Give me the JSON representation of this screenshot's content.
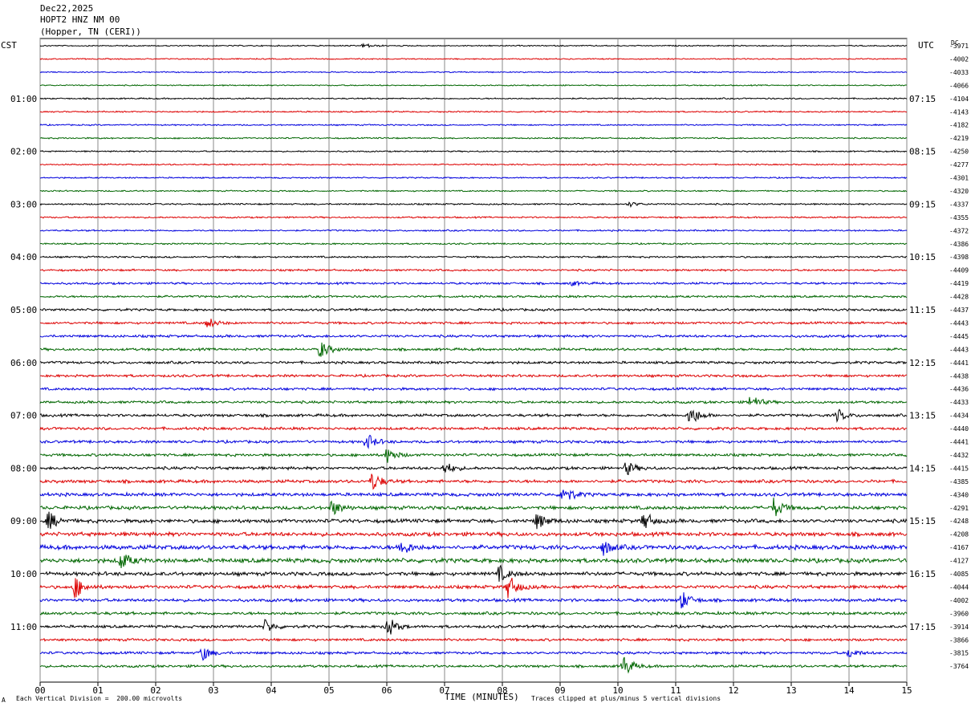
{
  "header": {
    "date": "Dec22,2025",
    "station": "HOPT2 HNZ NM 00",
    "location": "(Hopper, TN (CERI))"
  },
  "left_timezone": "CST",
  "right_timezone": "UTC",
  "dc_label": "DC",
  "footer": {
    "scale_note": "Each Vertical Division =  200.00 microvolts",
    "xlabel": "TIME (MINUTES)",
    "clip_note": "Traces clipped at plus/minus 5 vertical divisions",
    "corner_mark": "A"
  },
  "colors": {
    "cycle": [
      "#000000",
      "#dd0000",
      "#0000dd",
      "#006600"
    ],
    "grid": "#888888"
  },
  "chart_data": {
    "type": "line",
    "title": "HOPT2 HNZ NM 00",
    "xlabel": "TIME (MINUTES)",
    "xlim": [
      0,
      15
    ],
    "x_ticks": [
      "00",
      "01",
      "02",
      "03",
      "04",
      "05",
      "06",
      "07",
      "08",
      "09",
      "10",
      "11",
      "12",
      "13",
      "14",
      "15"
    ],
    "trace_count": 48,
    "left_hour_labels": [
      {
        "trace": 4,
        "label": "01:00"
      },
      {
        "trace": 8,
        "label": "02:00"
      },
      {
        "trace": 12,
        "label": "03:00"
      },
      {
        "trace": 16,
        "label": "04:00"
      },
      {
        "trace": 20,
        "label": "05:00"
      },
      {
        "trace": 24,
        "label": "06:00"
      },
      {
        "trace": 28,
        "label": "07:00"
      },
      {
        "trace": 32,
        "label": "08:00"
      },
      {
        "trace": 36,
        "label": "09:00"
      },
      {
        "trace": 40,
        "label": "10:00"
      },
      {
        "trace": 44,
        "label": "11:00"
      }
    ],
    "right_hour_labels": [
      {
        "trace": 4,
        "label": "07:15"
      },
      {
        "trace": 8,
        "label": "08:15"
      },
      {
        "trace": 12,
        "label": "09:15"
      },
      {
        "trace": 16,
        "label": "10:15"
      },
      {
        "trace": 20,
        "label": "11:15"
      },
      {
        "trace": 24,
        "label": "12:15"
      },
      {
        "trace": 28,
        "label": "13:15"
      },
      {
        "trace": 32,
        "label": "14:15"
      },
      {
        "trace": 36,
        "label": "15:15"
      },
      {
        "trace": 40,
        "label": "16:15"
      },
      {
        "trace": 44,
        "label": "17:15"
      }
    ],
    "dc_offsets": [
      "-3971",
      "-4002",
      "-4033",
      "-4066",
      "-4104",
      "-4143",
      "-4182",
      "-4219",
      "-4250",
      "-4277",
      "-4301",
      "-4320",
      "-4337",
      "-4355",
      "-4372",
      "-4386",
      "-4398",
      "-4409",
      "-4419",
      "-4428",
      "-4437",
      "-4443",
      "-4445",
      "-4443",
      "-4441",
      "-4438",
      "-4436",
      "-4433",
      "-4434",
      "-4440",
      "-4441",
      "-4432",
      "-4415",
      "-4385",
      "-4340",
      "-4291",
      "-4248",
      "-4208",
      "-4167",
      "-4127",
      "-4085",
      "-4044",
      "-4002",
      "-3960",
      "-3914",
      "-3866",
      "-3815",
      "-3764"
    ],
    "noise_level": [
      0.6,
      0.6,
      0.6,
      0.6,
      0.7,
      0.7,
      0.7,
      0.7,
      0.7,
      0.7,
      0.7,
      0.7,
      0.8,
      0.8,
      0.8,
      0.8,
      0.9,
      1.0,
      1.1,
      1.1,
      1.2,
      1.2,
      1.3,
      1.3,
      1.3,
      1.3,
      1.3,
      1.3,
      1.4,
      1.4,
      1.4,
      1.4,
      1.5,
      1.6,
      1.7,
      1.8,
      1.9,
      2.0,
      2.2,
      2.2,
      1.9,
      1.7,
      1.6,
      1.5,
      1.4,
      1.3,
      1.3,
      1.3
    ],
    "events": [
      {
        "trace": 0,
        "minute": 5.6,
        "amp": 3
      },
      {
        "trace": 12,
        "minute": 10.2,
        "amp": 3
      },
      {
        "trace": 18,
        "minute": 9.2,
        "amp": 3
      },
      {
        "trace": 21,
        "minute": 2.9,
        "amp": 7
      },
      {
        "trace": 23,
        "minute": 4.85,
        "amp": 12
      },
      {
        "trace": 27,
        "minute": 12.3,
        "amp": 10
      },
      {
        "trace": 28,
        "minute": 11.25,
        "amp": 14
      },
      {
        "trace": 28,
        "minute": 13.8,
        "amp": 8
      },
      {
        "trace": 30,
        "minute": 5.65,
        "amp": 11
      },
      {
        "trace": 31,
        "minute": 6.0,
        "amp": 10
      },
      {
        "trace": 32,
        "minute": 7.0,
        "amp": 8
      },
      {
        "trace": 32,
        "minute": 10.15,
        "amp": 9
      },
      {
        "trace": 33,
        "minute": 5.75,
        "amp": 12
      },
      {
        "trace": 34,
        "minute": 9.05,
        "amp": 14
      },
      {
        "trace": 35,
        "minute": 5.05,
        "amp": 10
      },
      {
        "trace": 35,
        "minute": 12.7,
        "amp": 13
      },
      {
        "trace": 36,
        "minute": 0.15,
        "amp": 12
      },
      {
        "trace": 36,
        "minute": 8.6,
        "amp": 11
      },
      {
        "trace": 36,
        "minute": 10.45,
        "amp": 12
      },
      {
        "trace": 38,
        "minute": 6.25,
        "amp": 11
      },
      {
        "trace": 38,
        "minute": 9.75,
        "amp": 9
      },
      {
        "trace": 39,
        "minute": 1.4,
        "amp": 12
      },
      {
        "trace": 40,
        "minute": 7.95,
        "amp": 10
      },
      {
        "trace": 41,
        "minute": 0.6,
        "amp": 15
      },
      {
        "trace": 41,
        "minute": 8.1,
        "amp": 16
      },
      {
        "trace": 42,
        "minute": 11.1,
        "amp": 12
      },
      {
        "trace": 44,
        "minute": 3.9,
        "amp": 9
      },
      {
        "trace": 44,
        "minute": 6.0,
        "amp": 15
      },
      {
        "trace": 46,
        "minute": 2.8,
        "amp": 10
      },
      {
        "trace": 46,
        "minute": 14.0,
        "amp": 6
      },
      {
        "trace": 47,
        "minute": 10.1,
        "amp": 14
      }
    ]
  }
}
